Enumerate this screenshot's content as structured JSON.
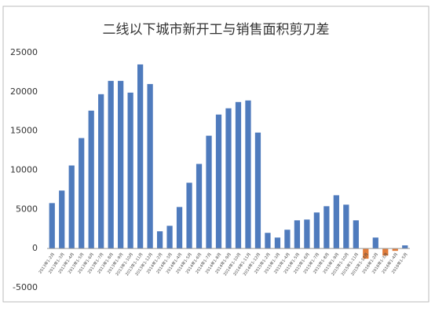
{
  "chart_data": {
    "type": "bar",
    "title": "二线以下城市新开工与销售面积剪刀差",
    "categories": [
      "2013年1-2月",
      "2013年1-3月",
      "2013年1-4月",
      "2013年1-5月",
      "2013年1-6月",
      "2013年1-7月",
      "2013年1-8月",
      "2013年1-9月",
      "2013年1-10月",
      "2013年1-11月",
      "2013年1-12月",
      "2014年1-2月",
      "2014年1-3月",
      "2014年1-4月",
      "2014年1-5月",
      "2014年1-6月",
      "2014年1-7月",
      "2014年1-8月",
      "2014年1-9月",
      "2014年1-10月",
      "2014年1-11月",
      "2014年1-12月",
      "2015年1-2月",
      "2015年1-3月",
      "2015年1-4月",
      "2015年1-5月",
      "2015年1-6月",
      "2015年1-7月",
      "2015年1-8月",
      "2015年1-9月",
      "2015年1-10月",
      "2015年1-11月",
      "2015年1-12月",
      "2016年1-2月",
      "2016年1-3月",
      "2016年1-4月",
      "2016年1-5月"
    ],
    "values": [
      5800,
      7400,
      10600,
      14100,
      17600,
      19700,
      21400,
      21400,
      19900,
      23500,
      21000,
      2200,
      2900,
      5300,
      8400,
      10800,
      14400,
      17100,
      17900,
      18700,
      18900,
      14800,
      2000,
      1400,
      2400,
      3600,
      3700,
      4600,
      5400,
      6800,
      5600,
      3600,
      -1300,
      1400,
      -900,
      -300,
      400
    ],
    "color": "#4f7bbd",
    "negative_color": "#e07b39",
    "ylim": [
      -5000,
      25000
    ],
    "yticks": [
      -5000,
      0,
      5000,
      10000,
      15000,
      20000,
      25000
    ],
    "grid": false
  }
}
